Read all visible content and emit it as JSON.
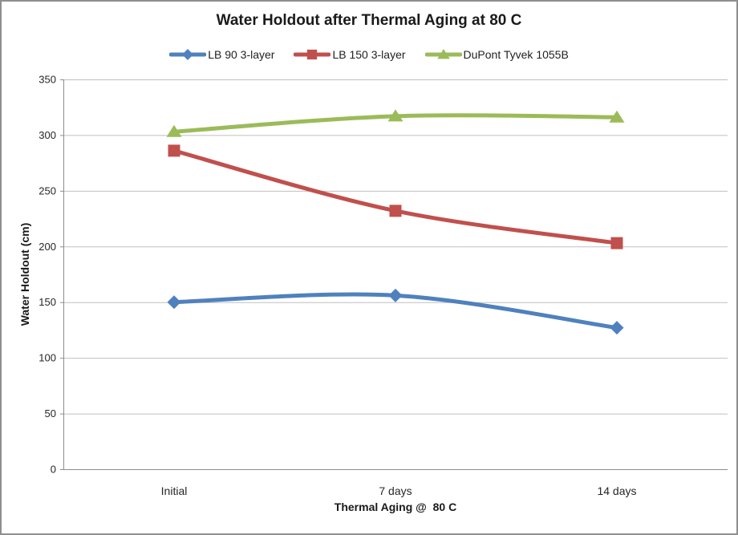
{
  "window": {
    "background": "#FFFFFF",
    "border_color": "#8F8F8F"
  },
  "chart_data": {
    "type": "line",
    "title": "Water Holdout after Thermal Aging at 80 C",
    "xlabel": "Thermal Aging @  80 C",
    "ylabel": "Water Holdout (cm)",
    "categories": [
      "Initial",
      "7 days",
      "14 days"
    ],
    "series": [
      {
        "name": "LB 90 3-layer",
        "color": "#4F81BD",
        "marker": "diamond",
        "values": [
          150,
          156,
          127
        ]
      },
      {
        "name": "LB 150 3-layer",
        "color": "#C0504D",
        "marker": "square",
        "values": [
          286,
          232,
          203
        ]
      },
      {
        "name": "DuPont Tyvek 1055B",
        "color": "#9BBB59",
        "marker": "triangle",
        "values": [
          303,
          317,
          316
        ]
      }
    ],
    "ylim": [
      0,
      350
    ],
    "ytick_step": 50,
    "yticks": [
      0,
      50,
      100,
      150,
      200,
      250,
      300,
      350
    ],
    "grid": true,
    "smooth": true,
    "legend_position": "top",
    "line_width": 5,
    "colors": {
      "gridline": "#BFBFBF",
      "axis": "#8C8C8C",
      "tick_text": "#262626"
    }
  }
}
